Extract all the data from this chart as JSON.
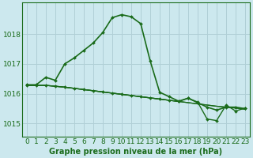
{
  "title": "Graphe pression niveau de la mer (hPa)",
  "bg_color": "#cce8ee",
  "grid_color": "#b0cfd6",
  "line_color": "#1a6b1a",
  "series": [
    {
      "x": [
        0,
        1,
        2,
        3,
        4,
        5,
        6,
        7,
        8,
        9,
        10,
        11,
        12,
        13,
        14,
        15,
        16,
        17,
        18,
        19,
        20,
        21,
        22,
        23
      ],
      "y": [
        1016.3,
        1016.3,
        1016.55,
        1016.45,
        1017.0,
        1017.2,
        1017.45,
        1017.7,
        1018.05,
        1018.55,
        1018.65,
        1018.58,
        1018.35,
        1017.1,
        1016.05,
        1015.9,
        1015.75,
        1015.85,
        1015.7,
        1015.55,
        1015.45,
        1015.55,
        1015.55,
        1015.5
      ],
      "marker": true,
      "lw": 1.2
    },
    {
      "x": [
        0,
        1,
        2,
        3,
        4,
        5,
        6,
        7,
        8,
        9,
        10,
        11,
        12,
        13,
        14,
        15,
        16,
        17,
        18,
        19,
        20,
        21,
        22,
        23
      ],
      "y": [
        1016.28,
        1016.28,
        1016.28,
        1016.25,
        1016.22,
        1016.18,
        1016.14,
        1016.1,
        1016.06,
        1016.02,
        1015.98,
        1015.94,
        1015.9,
        1015.86,
        1015.82,
        1015.78,
        1015.74,
        1015.7,
        1015.66,
        1015.62,
        1015.58,
        1015.55,
        1015.52,
        1015.48
      ],
      "marker": false,
      "lw": 0.9
    },
    {
      "x": [
        0,
        1,
        2,
        3,
        4,
        5,
        6,
        7,
        8,
        9,
        10,
        11,
        12,
        13,
        14,
        15,
        16,
        17,
        18,
        19,
        20,
        21,
        22,
        23
      ],
      "y": [
        1016.28,
        1016.28,
        1016.28,
        1016.25,
        1016.22,
        1016.18,
        1016.14,
        1016.1,
        1016.06,
        1016.02,
        1015.98,
        1015.94,
        1015.9,
        1015.86,
        1015.82,
        1015.78,
        1015.74,
        1015.85,
        1015.72,
        1015.15,
        1015.1,
        1015.62,
        1015.42,
        1015.52
      ],
      "marker": true,
      "lw": 1.0
    },
    {
      "x": [
        0,
        1,
        2,
        3,
        4,
        5,
        6,
        7,
        8,
        9,
        10,
        11,
        12,
        13,
        14,
        15,
        16,
        17,
        18,
        19,
        20,
        21,
        22,
        23
      ],
      "y": [
        1016.28,
        1016.28,
        1016.28,
        1016.25,
        1016.22,
        1016.18,
        1016.14,
        1016.1,
        1016.06,
        1016.02,
        1015.98,
        1015.94,
        1015.9,
        1015.86,
        1015.82,
        1015.78,
        1015.74,
        1015.7,
        1015.66,
        1015.62,
        1015.58,
        1015.55,
        1015.52,
        1015.48
      ],
      "marker": false,
      "lw": 0.9
    }
  ],
  "ylim": [
    1014.55,
    1019.05
  ],
  "yticks": [
    1015,
    1016,
    1017,
    1018
  ],
  "xticks": [
    0,
    1,
    2,
    3,
    4,
    5,
    6,
    7,
    8,
    9,
    10,
    11,
    12,
    13,
    14,
    15,
    16,
    17,
    18,
    19,
    20,
    21,
    22,
    23
  ],
  "tick_fontsize": 6.5,
  "title_fontsize": 7.0
}
